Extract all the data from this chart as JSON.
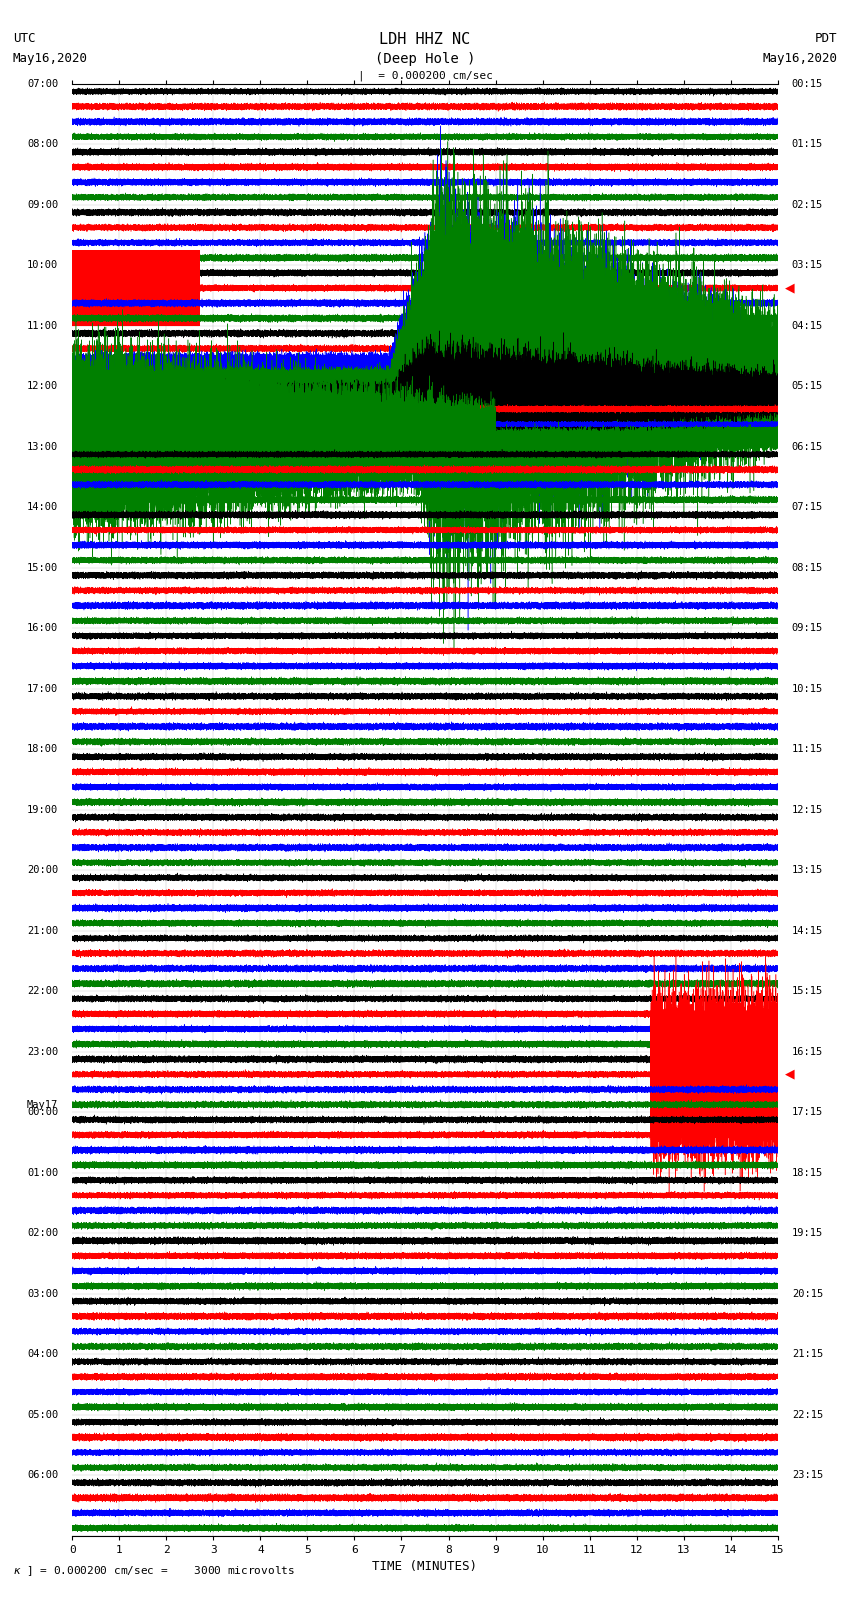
{
  "title_line1": "LDH HHZ NC",
  "title_line2": "(Deep Hole )",
  "scale_label": "= 0.000200 cm/sec",
  "scale_label2": "= 0.000200 cm/sec =    3000 microvolts",
  "xlabel": "TIME (MINUTES)",
  "left_label_top": "UTC",
  "left_label_bot": "May16,2020",
  "right_label_top": "PDT",
  "right_label_bot": "May16,2020",
  "left_times_utc": [
    "07:00",
    "08:00",
    "09:00",
    "10:00",
    "11:00",
    "12:00",
    "13:00",
    "14:00",
    "15:00",
    "16:00",
    "17:00",
    "18:00",
    "19:00",
    "20:00",
    "21:00",
    "22:00",
    "23:00",
    "00:00",
    "01:00",
    "02:00",
    "03:00",
    "04:00",
    "05:00",
    "06:00"
  ],
  "right_times_pdt": [
    "00:15",
    "01:15",
    "02:15",
    "03:15",
    "04:15",
    "05:15",
    "06:15",
    "07:15",
    "08:15",
    "09:15",
    "10:15",
    "11:15",
    "12:15",
    "13:15",
    "14:15",
    "15:15",
    "16:15",
    "17:15",
    "18:15",
    "19:15",
    "20:15",
    "21:15",
    "22:15",
    "23:15"
  ],
  "colors": [
    "black",
    "red",
    "blue",
    "green"
  ],
  "n_hours": 24,
  "n_minutes": 15,
  "background_color": "white",
  "figwidth": 8.5,
  "figheight": 16.13,
  "event_hour": 4,
  "event_color_idx": 2,
  "event2_hour": 9,
  "event2_color_idx": 3,
  "noise_event_hour": 3,
  "noise_event_color_idx": 1,
  "noise_event2_hour": 16,
  "noise_event2_color_idx": 1,
  "red_marker_hour1": 3,
  "red_marker_hour2": 16,
  "may17_hour": 17
}
